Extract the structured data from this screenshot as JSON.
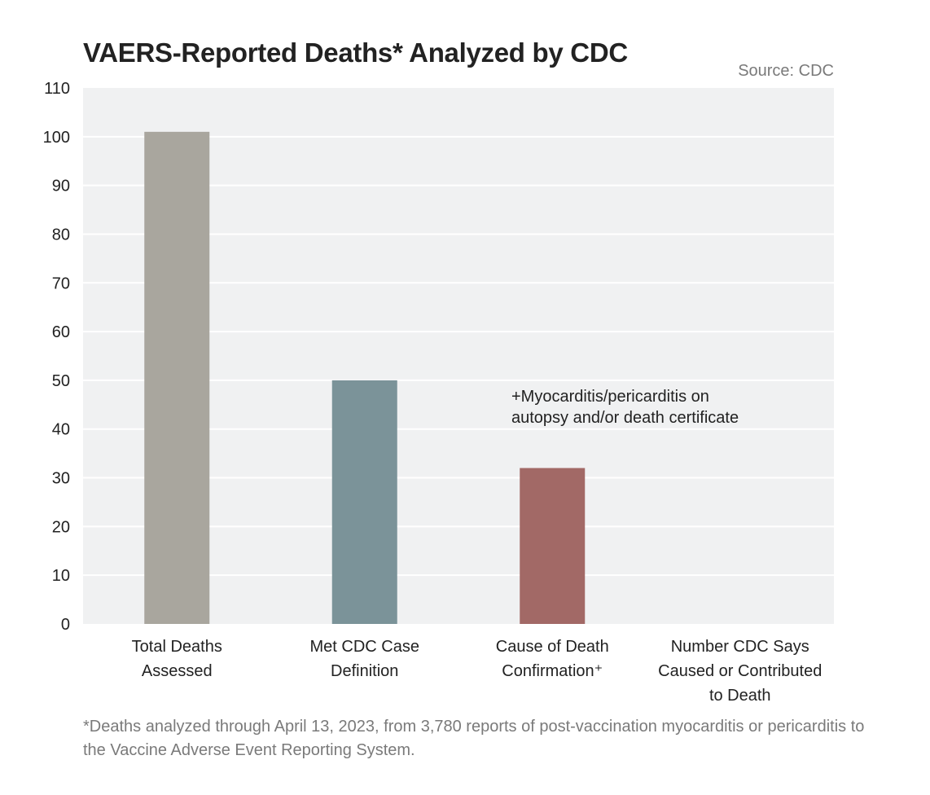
{
  "source": "Source: CDC",
  "footnote": "*Deaths analyzed through April 13, 2023, from 3,780 reports of post-vaccination myocarditis or pericarditis to the Vaccine Adverse Event Reporting System.",
  "chart_data": {
    "type": "bar",
    "title": "VAERS-Reported Deaths* Analyzed by CDC",
    "xlabel": "",
    "ylabel": "",
    "ylim": [
      0,
      110
    ],
    "yticks": [
      0,
      10,
      20,
      30,
      40,
      50,
      60,
      70,
      80,
      90,
      100,
      110
    ],
    "grid": true,
    "categories": [
      [
        "Total Deaths",
        "Assessed"
      ],
      [
        "Met CDC Case",
        "Definition"
      ],
      [
        "Cause of Death",
        "Confirmation⁺"
      ],
      [
        "Number CDC Says",
        "Caused or Contributed",
        "to Death"
      ]
    ],
    "values": [
      101,
      50,
      32,
      0
    ],
    "colors": [
      "#a9a69e",
      "#7b9399",
      "#a26966",
      "#a9a69e"
    ],
    "annotation": [
      "+Myocarditis/pericarditis on",
      "autopsy and/or death certificate"
    ],
    "plot_background": "#f0f1f2",
    "gridline_color": "#ffffff"
  }
}
